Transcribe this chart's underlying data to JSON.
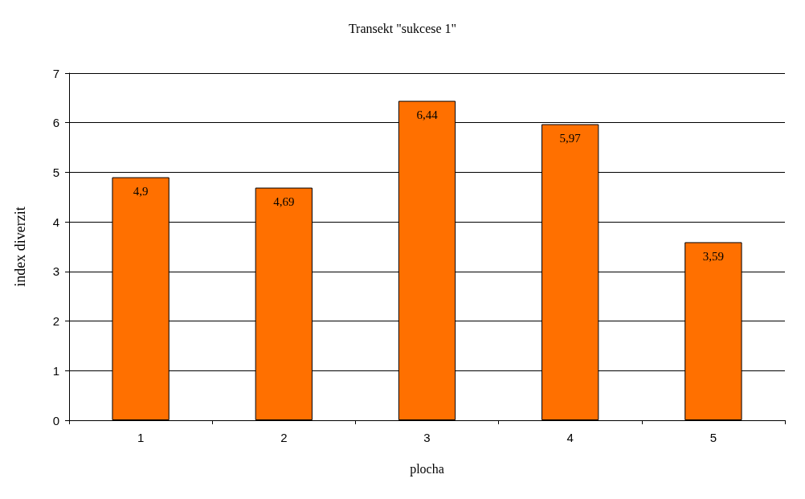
{
  "chart_data": {
    "type": "bar",
    "title": "Transekt \"sukcese 1\"",
    "xlabel": "plocha",
    "ylabel": "index diverzit",
    "categories": [
      "1",
      "2",
      "3",
      "4",
      "5"
    ],
    "values": [
      4.9,
      4.69,
      6.44,
      5.97,
      3.59
    ],
    "value_labels": [
      "4,9",
      "4,69",
      "6,44",
      "5,97",
      "3,59"
    ],
    "color": "#ff7000",
    "ylim": [
      0,
      7
    ],
    "yticks": [
      0,
      1,
      2,
      3,
      4,
      5,
      6,
      7
    ],
    "grid": "y"
  }
}
